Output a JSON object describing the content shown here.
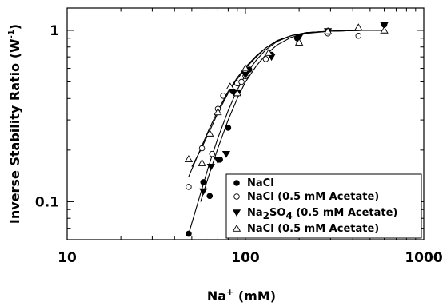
{
  "chart_data": {
    "type": "scatter",
    "title": "",
    "xlabel": "Na",
    "xlabel_sup": "+",
    "xlabel_unit": " (mM)",
    "ylabel": "Inverse Stability Ratio (W",
    "ylabel_sup": "-1",
    "ylabel_end": ")",
    "x_scale": "log",
    "y_scale": "log",
    "xlim": [
      10,
      1000
    ],
    "ylim": [
      0.06,
      1.35
    ],
    "x_ticks": [
      {
        "value": 10,
        "label": "10"
      },
      {
        "value": 100,
        "label": "100"
      },
      {
        "value": 1000,
        "label": "1000"
      }
    ],
    "y_ticks": [
      {
        "value": 0.1,
        "label": "0.1"
      },
      {
        "value": 1,
        "label": "1"
      }
    ],
    "legend_position": "bottom-right",
    "series": [
      {
        "name": "NaCl",
        "marker": "filled-circle",
        "x": [
          48,
          58,
          63,
          72,
          80,
          85,
          88,
          105,
          140,
          195,
          290,
          600
        ],
        "y": [
          0.065,
          0.13,
          0.108,
          0.176,
          0.27,
          0.44,
          0.43,
          0.59,
          0.72,
          0.9,
          0.97,
          1.08
        ]
      },
      {
        "name": "NaCl (0.5 mM Acetate)",
        "name_parts": [
          {
            "t": "NaCl (0.5 mM Acetate)"
          }
        ],
        "marker": "open-circle",
        "x": [
          48,
          57,
          65,
          70,
          75,
          90,
          95,
          100,
          130,
          200,
          290,
          430
        ],
        "y": [
          0.122,
          0.205,
          0.19,
          0.348,
          0.415,
          0.49,
          0.5,
          0.54,
          0.68,
          0.84,
          0.96,
          0.93
        ]
      },
      {
        "name": "Na2SO4 (0.5 mM Acetate)",
        "name_parts": [
          {
            "t": "Na"
          },
          {
            "t": "2",
            "sub": true
          },
          {
            "t": "SO"
          },
          {
            "t": "4",
            "sub": true
          },
          {
            "t": " (0.5 mM Acetate)"
          }
        ],
        "marker": "filled-triangle-down",
        "x": [
          58,
          64,
          70,
          78,
          90,
          100,
          140,
          200,
          290,
          600
        ],
        "y": [
          0.115,
          0.16,
          0.175,
          0.19,
          0.43,
          0.55,
          0.7,
          0.91,
          0.99,
          1.07
        ]
      },
      {
        "name": "NaCl (0.5 mM Acetate)",
        "name_parts": [
          {
            "t": "NaCl (0.5 mM Acetate)"
          }
        ],
        "marker": "open-triangle-up",
        "x": [
          48,
          57,
          63,
          70,
          82,
          90,
          100,
          135,
          200,
          290,
          430,
          600
        ],
        "y": [
          0.177,
          0.168,
          0.25,
          0.333,
          0.47,
          0.43,
          0.6,
          0.74,
          0.85,
          0.99,
          1.04,
          1.0
        ]
      }
    ],
    "fit_curves": [
      {
        "series": 0,
        "x": [
          48,
          55,
          62,
          70,
          80,
          90,
          100,
          115,
          130,
          150,
          180,
          220,
          300,
          450,
          600
        ],
        "y": [
          0.065,
          0.105,
          0.16,
          0.235,
          0.34,
          0.45,
          0.55,
          0.67,
          0.77,
          0.86,
          0.93,
          0.97,
          0.99,
          1.0,
          1.0
        ]
      },
      {
        "series": 1,
        "x": [
          48,
          55,
          62,
          70,
          80,
          90,
          100,
          115,
          130,
          150,
          180,
          220,
          300,
          450,
          600
        ],
        "y": [
          0.14,
          0.195,
          0.26,
          0.34,
          0.44,
          0.53,
          0.61,
          0.71,
          0.79,
          0.87,
          0.93,
          0.97,
          0.99,
          1.0,
          1.0
        ]
      },
      {
        "series": 2,
        "x": [
          56,
          62,
          70,
          80,
          90,
          100,
          115,
          130,
          150,
          180,
          220,
          300,
          450,
          600
        ],
        "y": [
          0.1,
          0.14,
          0.205,
          0.3,
          0.4,
          0.5,
          0.62,
          0.72,
          0.82,
          0.91,
          0.96,
          0.99,
          1.0,
          1.0
        ]
      },
      {
        "series": 3,
        "x": [
          50,
          56,
          62,
          70,
          80,
          90,
          100,
          115,
          130,
          150,
          180,
          220,
          300,
          450,
          600
        ],
        "y": [
          0.16,
          0.2,
          0.25,
          0.33,
          0.43,
          0.52,
          0.6,
          0.7,
          0.79,
          0.87,
          0.93,
          0.97,
          0.99,
          1.0,
          1.0
        ]
      }
    ]
  }
}
